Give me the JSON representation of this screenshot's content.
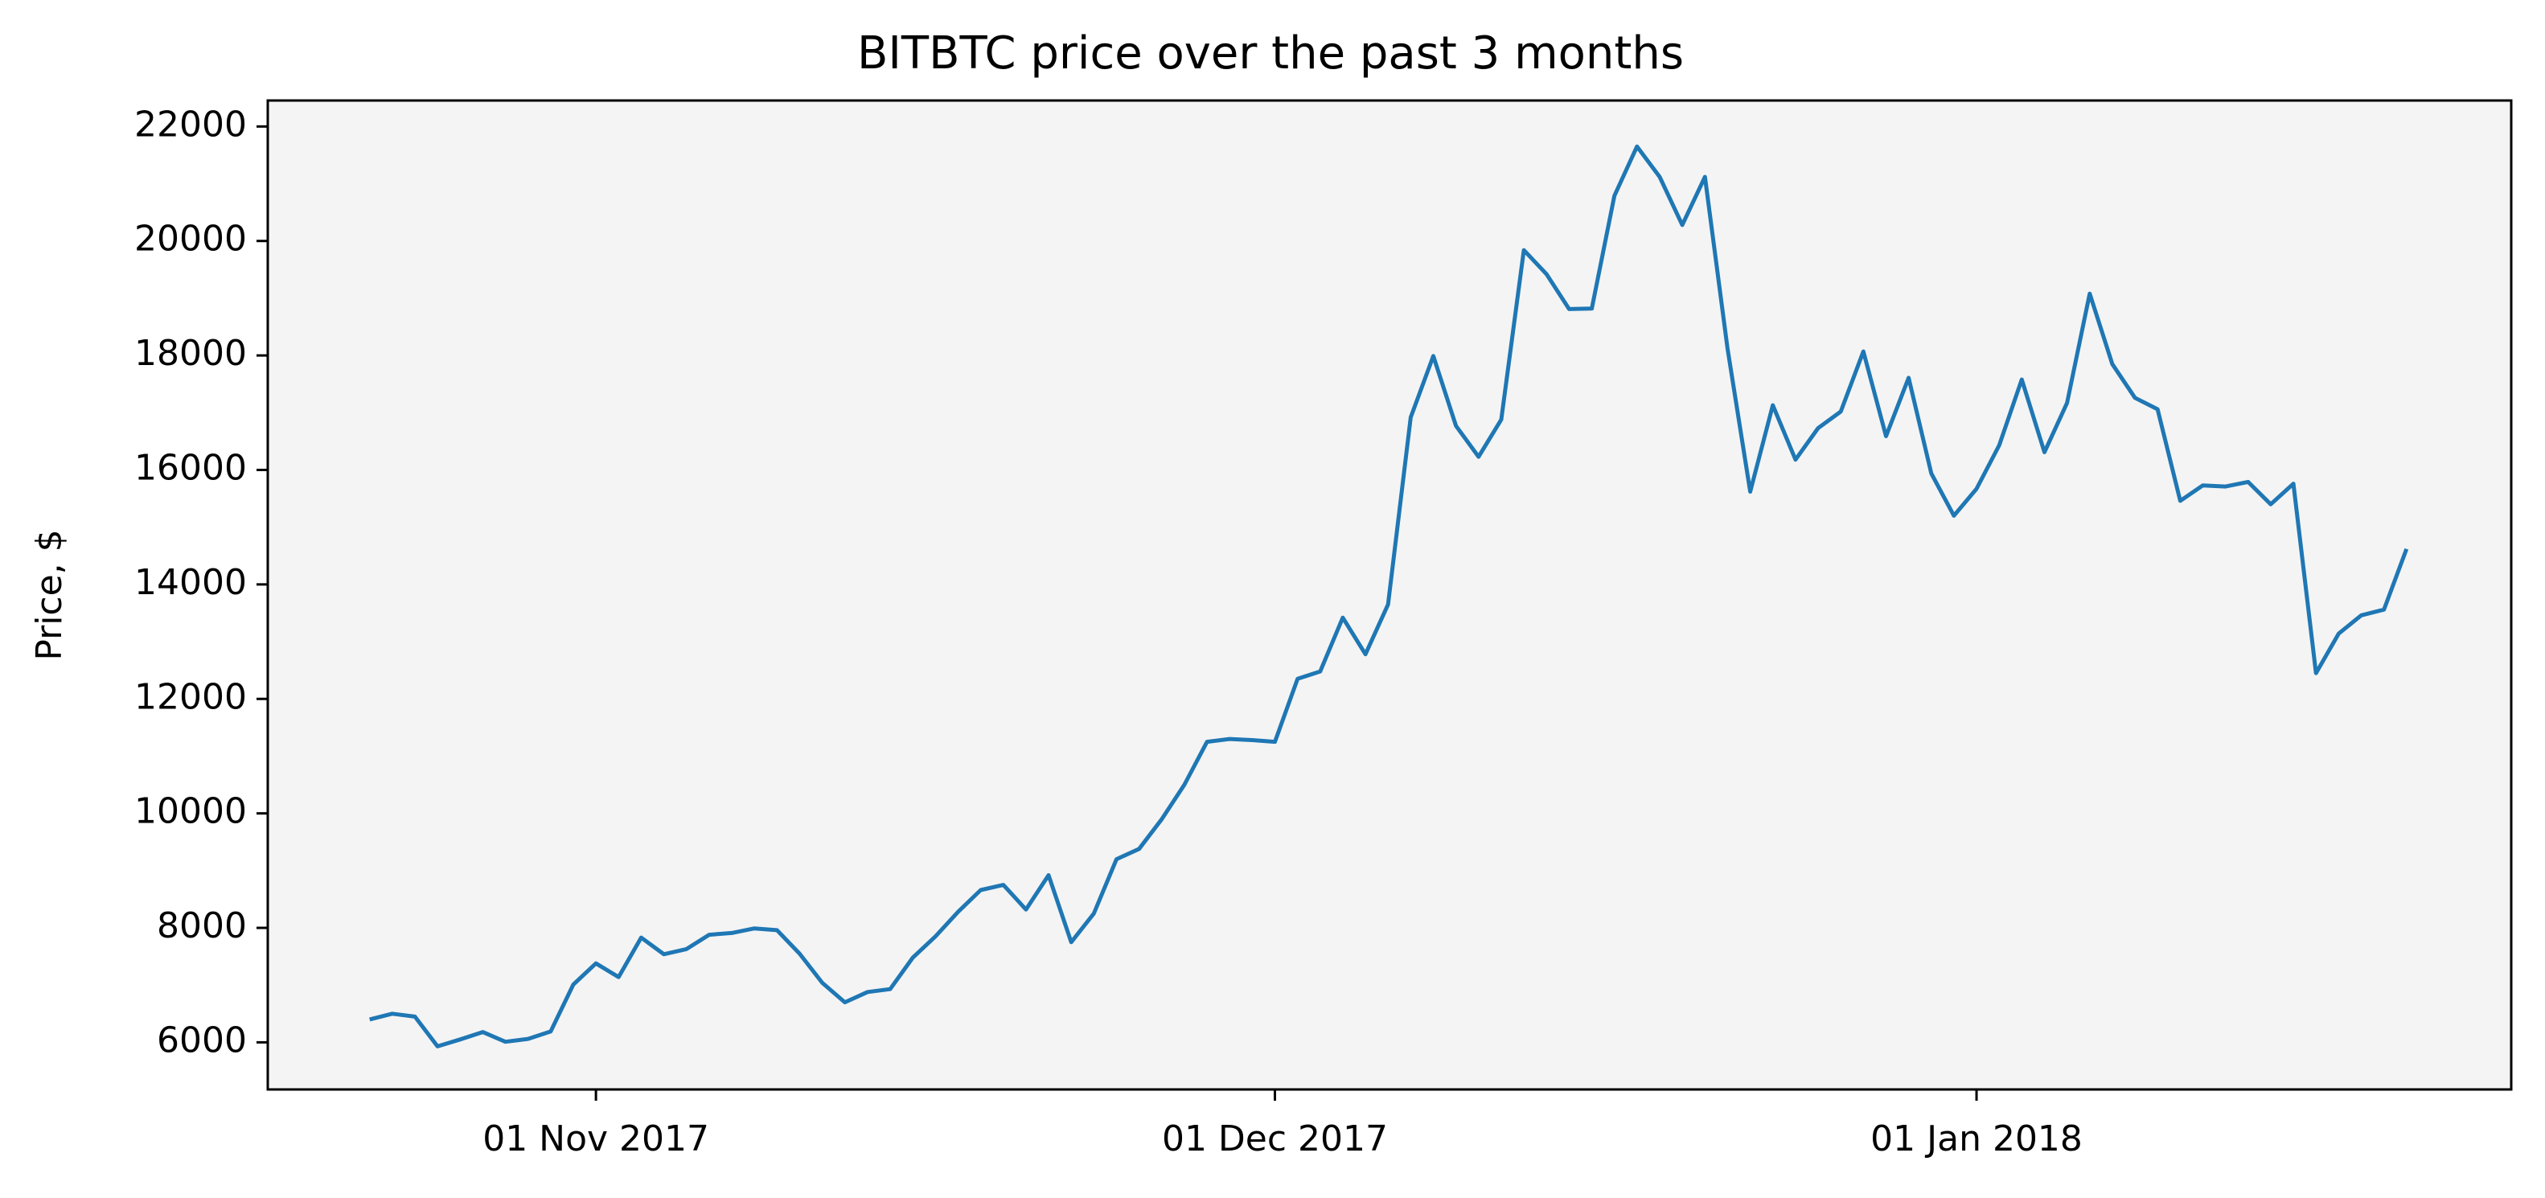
{
  "chart_data": {
    "type": "line",
    "title": "BITBTC price over the past 3 months",
    "y_label": "Price, $",
    "x": [
      "2017-10-22",
      "2017-10-23",
      "2017-10-24",
      "2017-10-25",
      "2017-10-26",
      "2017-10-27",
      "2017-10-28",
      "2017-10-29",
      "2017-10-30",
      "2017-10-31",
      "2017-11-01",
      "2017-11-02",
      "2017-11-03",
      "2017-11-04",
      "2017-11-05",
      "2017-11-06",
      "2017-11-07",
      "2017-11-08",
      "2017-11-09",
      "2017-11-10",
      "2017-11-11",
      "2017-11-12",
      "2017-11-13",
      "2017-11-14",
      "2017-11-15",
      "2017-11-16",
      "2017-11-17",
      "2017-11-18",
      "2017-11-19",
      "2017-11-20",
      "2017-11-21",
      "2017-11-22",
      "2017-11-23",
      "2017-11-24",
      "2017-11-25",
      "2017-11-26",
      "2017-11-27",
      "2017-11-28",
      "2017-11-29",
      "2017-11-30",
      "2017-12-01",
      "2017-12-02",
      "2017-12-03",
      "2017-12-04",
      "2017-12-05",
      "2017-12-06",
      "2017-12-07",
      "2017-12-08",
      "2017-12-09",
      "2017-12-10",
      "2017-12-11",
      "2017-12-12",
      "2017-12-13",
      "2017-12-14",
      "2017-12-15",
      "2017-12-16",
      "2017-12-17",
      "2017-12-18",
      "2017-12-19",
      "2017-12-20",
      "2017-12-21",
      "2017-12-22",
      "2017-12-23",
      "2017-12-24",
      "2017-12-25",
      "2017-12-26",
      "2017-12-27",
      "2017-12-28",
      "2017-12-29",
      "2017-12-30",
      "2017-12-31",
      "2018-01-01",
      "2018-01-02",
      "2018-01-03",
      "2018-01-04",
      "2018-01-05",
      "2018-01-06",
      "2018-01-07",
      "2018-01-08",
      "2018-01-09",
      "2018-01-10",
      "2018-01-11",
      "2018-01-12",
      "2018-01-13",
      "2018-01-14",
      "2018-01-15",
      "2018-01-16",
      "2018-01-17",
      "2018-01-18",
      "2018-01-19",
      "2018-01-20"
    ],
    "series": [
      {
        "name": "BITBTC",
        "color": "#1f77b4",
        "values": [
          6400,
          6500,
          6450,
          5930,
          6050,
          6180,
          6010,
          6060,
          6190,
          7010,
          7380,
          7140,
          7830,
          7540,
          7630,
          7880,
          7910,
          7990,
          7960,
          7550,
          7040,
          6700,
          6880,
          6930,
          7480,
          7850,
          8280,
          8660,
          8750,
          8320,
          8920,
          7750,
          8250,
          9200,
          9380,
          9900,
          10500,
          11250,
          11300,
          11280,
          11250,
          12350,
          12480,
          13420,
          12780,
          13650,
          16920,
          17990,
          16770,
          16230,
          16880,
          19840,
          19420,
          18810,
          18820,
          20790,
          21650,
          21120,
          20280,
          21120,
          18120,
          15620,
          17130,
          16180,
          16730,
          17020,
          18070,
          16590,
          17610,
          15940,
          15200,
          15670,
          16430,
          17580,
          16310,
          17170,
          19080,
          17850,
          17260,
          17060,
          15460,
          15730,
          15710,
          15790,
          15400,
          15760,
          12450,
          13140,
          13460,
          13560,
          14620
        ]
      }
    ],
    "xlim": [
      "2017-10-17T12:00",
      "2018-01-24T15:00"
    ],
    "xticks": [
      {
        "value": "2017-11-01",
        "label": "01 Nov 2017"
      },
      {
        "value": "2017-12-01",
        "label": "01 Dec 2017"
      },
      {
        "value": "2018-01-01",
        "label": "01 Jan 2018"
      }
    ],
    "ylim": [
      5177,
      22454
    ],
    "yticks": [
      6000,
      8000,
      10000,
      12000,
      14000,
      16000,
      18000,
      20000,
      22000
    ]
  }
}
